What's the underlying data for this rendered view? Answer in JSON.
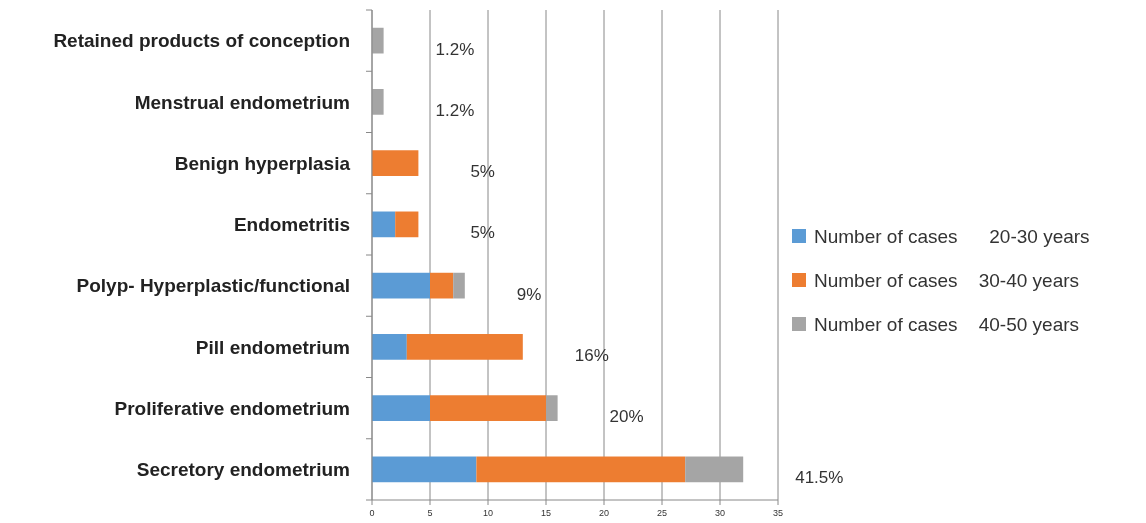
{
  "chart_data": {
    "type": "bar",
    "orientation": "horizontal",
    "stacked": true,
    "categories": [
      "Retained products of conception",
      "Menstrual endometrium",
      "Benign hyperplasia",
      "Endometritis",
      "Polyp- Hyperplastic/functional",
      "Pill endometrium",
      "Proliferative endometrium",
      "Secretory endometrium"
    ],
    "series": [
      {
        "name": "Number of cases      20-30 years",
        "color": "#5b9bd5",
        "values": [
          0,
          0,
          0,
          2,
          5,
          3,
          5,
          9
        ]
      },
      {
        "name": "Number of cases    30-40 years",
        "color": "#ed7d31",
        "values": [
          0,
          0,
          4,
          2,
          2,
          10,
          10,
          18
        ]
      },
      {
        "name": "Number of cases    40-50 years",
        "color": "#a5a5a5",
        "values": [
          1,
          1,
          0,
          0,
          1,
          0,
          1,
          5
        ]
      }
    ],
    "annotations": [
      "1.2%",
      "1.2%",
      "5%",
      "5%",
      "9%",
      "16%",
      "20%",
      "41.5%"
    ],
    "xlim": [
      0,
      35
    ],
    "xticks": [
      0,
      5,
      10,
      15,
      20,
      25,
      30,
      35
    ],
    "grid": "x",
    "legend": "right"
  }
}
